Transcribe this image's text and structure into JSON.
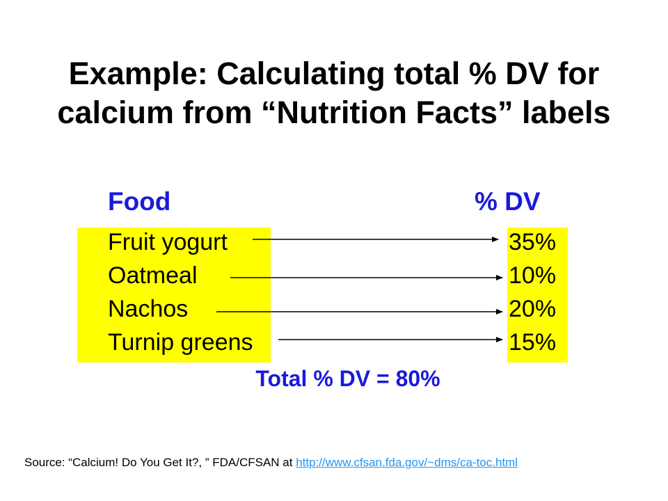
{
  "title": {
    "line1": "Example: Calculating total % DV for",
    "line2": "calcium from “Nutrition Facts” labels"
  },
  "table": {
    "header_food": "Food",
    "header_dv": "% DV",
    "rows": [
      {
        "food": "Fruit yogurt",
        "dv": "35%"
      },
      {
        "food": "Oatmeal",
        "dv": "10%"
      },
      {
        "food": "Nachos",
        "dv": "20%"
      },
      {
        "food": "Turnip greens",
        "dv": "15%"
      }
    ],
    "total": "Total % DV = 80%"
  },
  "source": {
    "prefix": "Source: “Calcium! Do You Get It?, ” FDA/CFSAN at ",
    "link": "http://www.cfsan.fda.gov/~dms/ca-toc.html"
  },
  "colors": {
    "highlight": "#ffff00",
    "header_blue": "#1a1adb",
    "link_blue": "#2196f3"
  }
}
